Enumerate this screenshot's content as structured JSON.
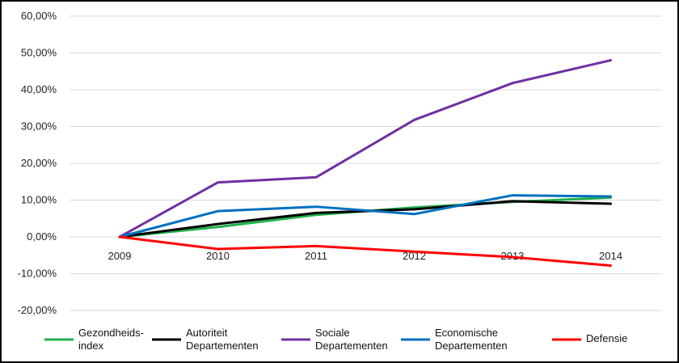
{
  "chart_data": {
    "type": "line",
    "categories": [
      "2009",
      "2010",
      "2011",
      "2012",
      "2013",
      "2014"
    ],
    "y_ticks": [
      "60,00%",
      "50,00%",
      "40,00%",
      "30,00%",
      "20,00%",
      "10,00%",
      "0,00%",
      "-10,00%",
      "-20,00%"
    ],
    "ylim": [
      -20,
      60
    ],
    "grid": true,
    "legend_position": "bottom",
    "series": [
      {
        "name": "Gezondheids-index",
        "label_lines": [
          "Gezondheids-",
          "index"
        ],
        "color": "#22b14c",
        "values": [
          0,
          2.7,
          6.0,
          8.0,
          9.5,
          10.7
        ]
      },
      {
        "name": "Autoriteit Departementen",
        "label_lines": [
          "Autoriteit",
          "Departementen"
        ],
        "color": "#000000",
        "values": [
          0,
          3.5,
          6.5,
          7.5,
          9.7,
          9.0
        ]
      },
      {
        "name": "Sociale Departementen",
        "label_lines": [
          "Sociale",
          "Departementen"
        ],
        "color": "#7030a0",
        "values": [
          0,
          14.8,
          16.2,
          31.8,
          41.8,
          48.0
        ]
      },
      {
        "name": "Economische Departementen",
        "label_lines": [
          "Economische",
          "Departementen"
        ],
        "color": "#0070c0",
        "values": [
          0,
          7.0,
          8.2,
          6.2,
          11.3,
          11.0
        ]
      },
      {
        "name": "Defensie",
        "label_lines": [
          "Defensie"
        ],
        "color": "#ff0000",
        "values": [
          0,
          -3.3,
          -2.5,
          -4.0,
          -5.5,
          -7.8
        ]
      }
    ]
  }
}
